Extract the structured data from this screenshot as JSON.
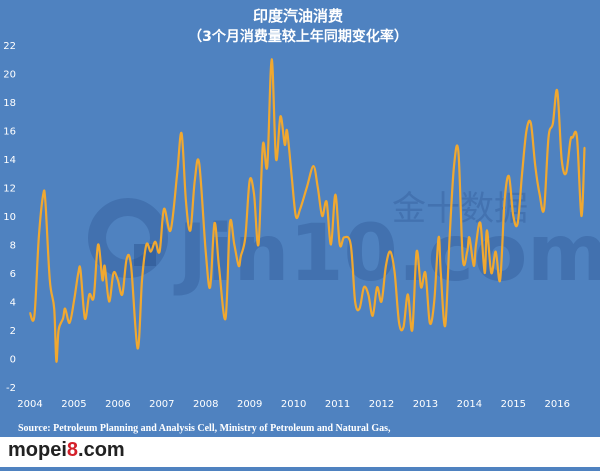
{
  "chart_data": {
    "type": "line",
    "title": "印度汽油消费",
    "subtitle": "（3个月消费量较上年同期变化率）",
    "xlabel": "",
    "ylabel": "",
    "x_ticks": [
      "2004",
      "2005",
      "2006",
      "2007",
      "2008",
      "2009",
      "2010",
      "2011",
      "2012",
      "2013",
      "2014",
      "2015",
      "2016"
    ],
    "y_ticks": [
      "22",
      "20",
      "18",
      "16",
      "14",
      "12",
      "10",
      "8",
      "6",
      "4",
      "2",
      "0",
      "-2"
    ],
    "xlim": [
      2004,
      2016.7
    ],
    "ylim": [
      -2,
      22
    ],
    "grid": false,
    "legend": "none",
    "series": [
      {
        "color": "#f0a830",
        "x": [
          2004.0,
          2004.1,
          2004.2,
          2004.3,
          2004.35,
          2004.45,
          2004.55,
          2004.6,
          2004.65,
          2004.75,
          2004.8,
          2004.9,
          2005.0,
          2005.1,
          2005.15,
          2005.25,
          2005.35,
          2005.45,
          2005.55,
          2005.65,
          2005.7,
          2005.8,
          2005.9,
          2006.0,
          2006.1,
          2006.2,
          2006.3,
          2006.45,
          2006.55,
          2006.65,
          2006.75,
          2006.85,
          2006.95,
          2007.05,
          2007.2,
          2007.35,
          2007.45,
          2007.55,
          2007.65,
          2007.75,
          2007.85,
          2008.0,
          2008.1,
          2008.2,
          2008.3,
          2008.45,
          2008.55,
          2008.65,
          2008.75,
          2008.8,
          2008.9,
          2009.0,
          2009.1,
          2009.2,
          2009.3,
          2009.4,
          2009.5,
          2009.6,
          2009.7,
          2009.8,
          2009.85,
          2009.95,
          2010.05,
          2010.15,
          2010.3,
          2010.45,
          2010.55,
          2010.65,
          2010.75,
          2010.85,
          2010.95,
          2011.05,
          2011.15,
          2011.3,
          2011.4,
          2011.5,
          2011.6,
          2011.7,
          2011.8,
          2011.9,
          2012.0,
          2012.1,
          2012.2,
          2012.3,
          2012.4,
          2012.5,
          2012.6,
          2012.7,
          2012.8,
          2012.9,
          2013.0,
          2013.1,
          2013.2,
          2013.3,
          2013.35,
          2013.45,
          2013.55,
          2013.65,
          2013.75,
          2013.85,
          2013.95,
          2014.0,
          2014.1,
          2014.15,
          2014.25,
          2014.35,
          2014.4,
          2014.5,
          2014.6,
          2014.7,
          2014.8,
          2014.9,
          2015.0,
          2015.1,
          2015.2,
          2015.3,
          2015.4,
          2015.5,
          2015.6,
          2015.7,
          2015.8,
          2015.9,
          2016.0,
          2016.1,
          2016.2,
          2016.3,
          2016.35,
          2016.45,
          2016.55,
          2016.62
        ],
        "y": [
          3.2,
          3.0,
          8.5,
          11.5,
          11.0,
          5.5,
          3.5,
          -0.2,
          2.0,
          2.8,
          3.5,
          2.5,
          4.0,
          6.0,
          6.2,
          2.8,
          4.5,
          4.3,
          8.0,
          5.5,
          6.5,
          4.0,
          6.0,
          5.5,
          4.5,
          7.0,
          6.5,
          0.7,
          5.5,
          8.0,
          7.5,
          8.2,
          7.5,
          10.5,
          9.0,
          13.0,
          15.8,
          11.0,
          9.0,
          12.5,
          13.7,
          7.5,
          5.0,
          9.5,
          6.5,
          2.8,
          9.5,
          8.0,
          6.5,
          7.2,
          8.5,
          12.5,
          11.5,
          8.0,
          15.0,
          13.5,
          21.0,
          14.0,
          17.0,
          15.0,
          16.0,
          13.0,
          10.0,
          10.5,
          12.0,
          13.5,
          12.0,
          10.0,
          11.0,
          8.0,
          11.5,
          8.0,
          8.5,
          8.0,
          4.0,
          3.5,
          5.0,
          4.5,
          3.0,
          5.0,
          4.0,
          6.5,
          7.5,
          6.0,
          2.5,
          2.2,
          4.5,
          2.0,
          7.5,
          5.0,
          6.0,
          2.5,
          4.0,
          8.5,
          6.0,
          2.3,
          8.5,
          13.5,
          14.5,
          7.0,
          7.5,
          8.5,
          6.5,
          8.0,
          9.5,
          6.0,
          9.0,
          6.0,
          7.5,
          5.5,
          11.0,
          12.8,
          10.0,
          9.5,
          13.0,
          16.0,
          16.5,
          13.5,
          11.5,
          10.5,
          15.5,
          16.5,
          18.8,
          14.0,
          13.0,
          15.3,
          15.5,
          15.5,
          10.0,
          14.8
        ]
      }
    ],
    "source": "Source: Petroleum Planning and Analysis Cell, Ministry of Petroleum and Natural Gas,"
  },
  "watermark": {
    "latin": "Jin10.com",
    "chinese": "金十数据"
  },
  "site_logo": {
    "text_before": "mopei",
    "digit": "8",
    "text_after": ".com"
  }
}
